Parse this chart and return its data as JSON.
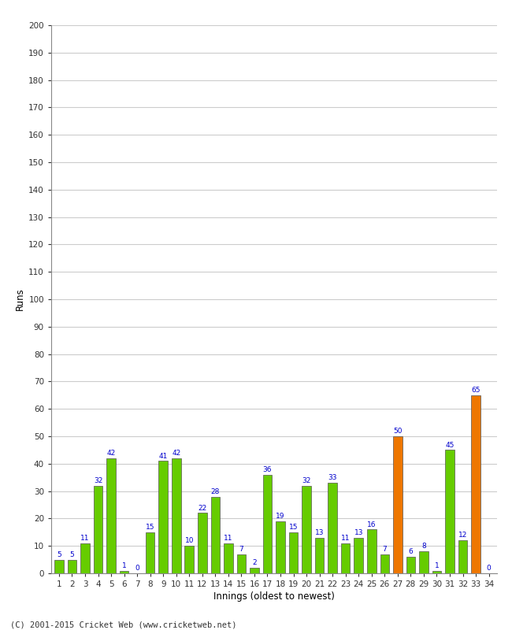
{
  "innings": [
    1,
    2,
    3,
    4,
    5,
    6,
    7,
    8,
    9,
    10,
    11,
    12,
    13,
    14,
    15,
    16,
    17,
    18,
    19,
    20,
    21,
    22,
    23,
    24,
    25,
    26,
    27,
    28,
    29,
    30,
    31,
    32,
    33,
    34
  ],
  "runs": [
    5,
    5,
    11,
    32,
    42,
    1,
    0,
    15,
    41,
    42,
    10,
    22,
    28,
    11,
    7,
    2,
    36,
    19,
    15,
    32,
    13,
    33,
    11,
    13,
    16,
    7,
    50,
    6,
    8,
    1,
    45,
    12,
    65,
    0
  ],
  "colors": [
    "#66cc00",
    "#66cc00",
    "#66cc00",
    "#66cc00",
    "#66cc00",
    "#66cc00",
    "#66cc00",
    "#66cc00",
    "#66cc00",
    "#66cc00",
    "#66cc00",
    "#66cc00",
    "#66cc00",
    "#66cc00",
    "#66cc00",
    "#66cc00",
    "#66cc00",
    "#66cc00",
    "#66cc00",
    "#66cc00",
    "#66cc00",
    "#66cc00",
    "#66cc00",
    "#66cc00",
    "#66cc00",
    "#66cc00",
    "#ee7700",
    "#66cc00",
    "#66cc00",
    "#66cc00",
    "#66cc00",
    "#66cc00",
    "#ee7700",
    "#66cc00"
  ],
  "xlabel": "Innings (oldest to newest)",
  "ylabel": "Runs",
  "ylim": [
    0,
    200
  ],
  "yticks": [
    0,
    10,
    20,
    30,
    40,
    50,
    60,
    70,
    80,
    90,
    100,
    110,
    120,
    130,
    140,
    150,
    160,
    170,
    180,
    190,
    200
  ],
  "label_color": "#0000cc",
  "bar_edge_color": "#555555",
  "background_color": "#ffffff",
  "grid_color": "#cccccc",
  "footer": "(C) 2001-2015 Cricket Web (www.cricketweb.net)"
}
